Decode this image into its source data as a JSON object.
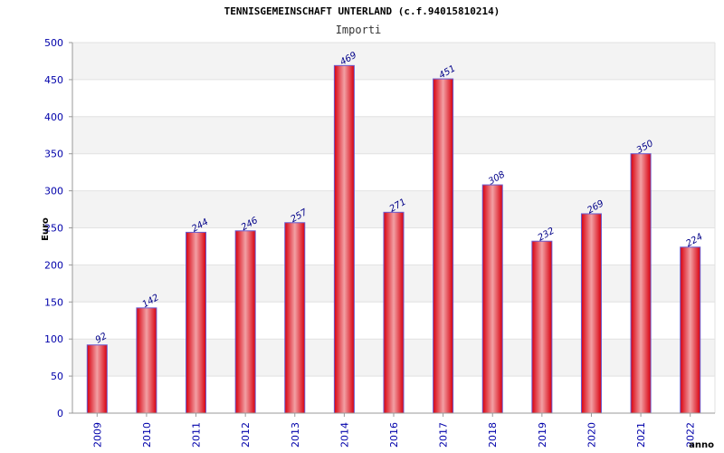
{
  "chart_data": {
    "type": "bar",
    "title": "TENNISGEMEINSCHAFT UNTERLAND (c.f.94015810214)",
    "subtitle": "Importi",
    "xlabel": "anno",
    "ylabel": "Euro",
    "ylim": [
      0,
      500
    ],
    "yticks": [
      0,
      50,
      100,
      150,
      200,
      250,
      300,
      350,
      400,
      450,
      500
    ],
    "grid": true,
    "categories": [
      "2009",
      "2010",
      "2011",
      "2012",
      "2013",
      "2014",
      "2016",
      "2017",
      "2018",
      "2019",
      "2020",
      "2021",
      "2022"
    ],
    "values": [
      92,
      142,
      244,
      246,
      257,
      469,
      271,
      451,
      308,
      232,
      269,
      350,
      224
    ],
    "data_labels": [
      "92",
      "142",
      "244",
      "246",
      "257",
      "469",
      "271",
      "451",
      "308",
      "232",
      "269",
      "350",
      "224"
    ],
    "colors": {
      "bar": "#e8101a",
      "bar_edge": "#6a5acd",
      "band": "#f3f3f3",
      "tick_text": "#0000aa"
    }
  }
}
